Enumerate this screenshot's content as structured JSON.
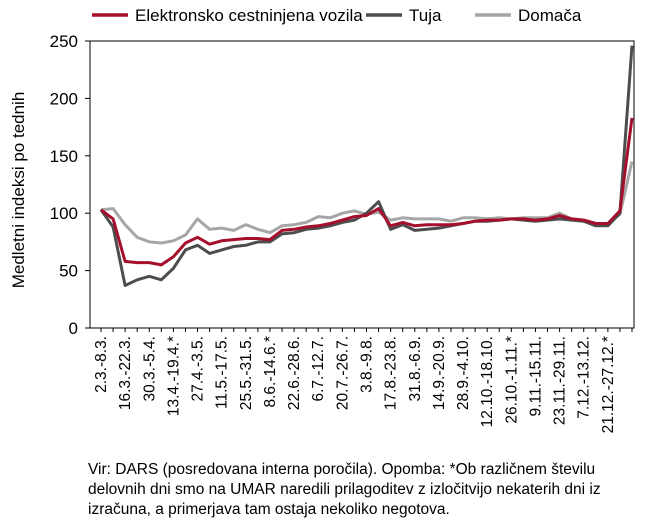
{
  "chart_data": {
    "type": "line",
    "ylabel": "Medletni indeksi po tednih",
    "ylim": [
      0,
      250
    ],
    "y_ticks": [
      "0",
      "50",
      "100",
      "150",
      "200",
      "250"
    ],
    "x_tick_labels": [
      "2.3.-8.3.",
      "16.3.-22.3.",
      "30.3.-5.4.",
      "13.4.-19.4.*",
      "27.4.-3.5.",
      "11.5.-17.5.",
      "25.5.-31.5.",
      "8.6.-14.6.*",
      "22.6.-28.6.",
      "6.7.-12.7.",
      "20.7.-26.7.",
      "3.8.-9.8.",
      "17.8.-23.8.",
      "31.8.-6.9.",
      "14.9.-20.9.",
      "28.9.-4.10.",
      "12.10.-18.10.",
      "26.10.-1.11.*",
      "9.11.-15.11.",
      "23.11.-29.11.",
      "7.12.-13.12.",
      "21.12.-27.12.*"
    ],
    "legend_position": "top",
    "grid": false,
    "series": [
      {
        "name": "Elektronsko cestninjena vozila",
        "color": "#a50f2d",
        "values": [
          103,
          95,
          58,
          57,
          57,
          55,
          62,
          74,
          79,
          73,
          76,
          77,
          78,
          78,
          77,
          85,
          86,
          88,
          89,
          91,
          94,
          97,
          98,
          104,
          89,
          92,
          89,
          90,
          90,
          90,
          91,
          93,
          94,
          94,
          95,
          95,
          94,
          95,
          98,
          95,
          94,
          91,
          91,
          102,
          183
        ]
      },
      {
        "name": "Tuja",
        "color": "#4d4d4d",
        "values": [
          103,
          88,
          37,
          42,
          45,
          42,
          52,
          68,
          72,
          65,
          68,
          71,
          72,
          75,
          75,
          82,
          83,
          86,
          87,
          89,
          92,
          94,
          100,
          110,
          86,
          90,
          85,
          86,
          87,
          89,
          91,
          93,
          93,
          94,
          95,
          94,
          93,
          94,
          95,
          94,
          93,
          89,
          89,
          100,
          246
        ]
      },
      {
        "name": "Domača",
        "color": "#a6a6a6",
        "values": [
          103,
          104,
          90,
          79,
          75,
          74,
          76,
          81,
          95,
          86,
          87,
          85,
          90,
          86,
          83,
          89,
          90,
          92,
          97,
          96,
          100,
          102,
          99,
          101,
          94,
          96,
          95,
          95,
          95,
          93,
          96,
          96,
          95,
          96,
          95,
          96,
          96,
          96,
          100,
          95,
          94,
          91,
          91,
          99,
          145
        ]
      }
    ]
  },
  "note": "Vir: DARS (posredovana interna poročila). Opomba: *Ob različnem številu delovnih dni smo na UMAR naredili prilagoditev z izločitvijo nekaterih dni iz izračuna, a primerjava tam ostaja nekoliko negotova."
}
